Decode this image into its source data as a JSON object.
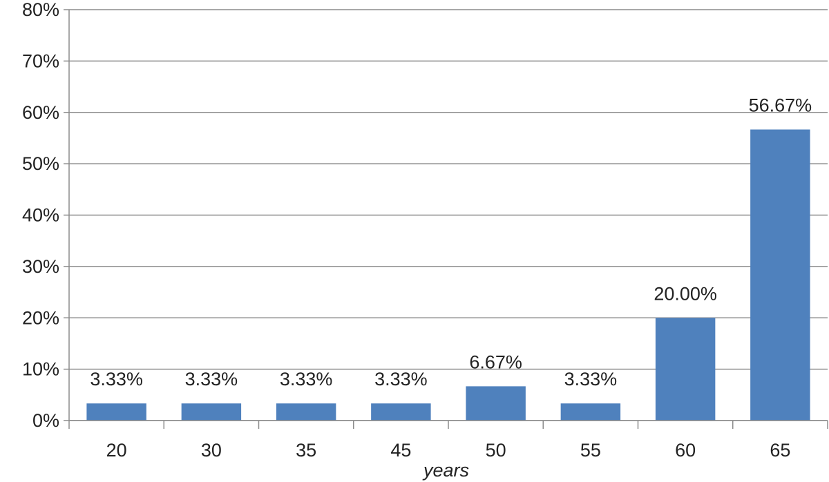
{
  "chart_data": {
    "type": "bar",
    "title": "",
    "xlabel": "years",
    "ylabel": "",
    "categories": [
      "20",
      "30",
      "35",
      "45",
      "50",
      "55",
      "60",
      "65"
    ],
    "values": [
      3.33,
      3.33,
      3.33,
      3.33,
      6.67,
      3.33,
      20.0,
      56.67
    ],
    "data_labels": [
      "3.33%",
      "3.33%",
      "3.33%",
      "3.33%",
      "6.67%",
      "3.33%",
      "20.00%",
      "56.67%"
    ],
    "yticks": [
      0,
      10,
      20,
      30,
      40,
      50,
      60,
      70,
      80
    ],
    "ytick_labels": [
      "0%",
      "10%",
      "20%",
      "30%",
      "40%",
      "50%",
      "60%",
      "70%",
      "80%"
    ],
    "ylim": [
      0,
      80
    ],
    "grid": true,
    "legend": "none",
    "bar_color": "#4f81bd"
  }
}
